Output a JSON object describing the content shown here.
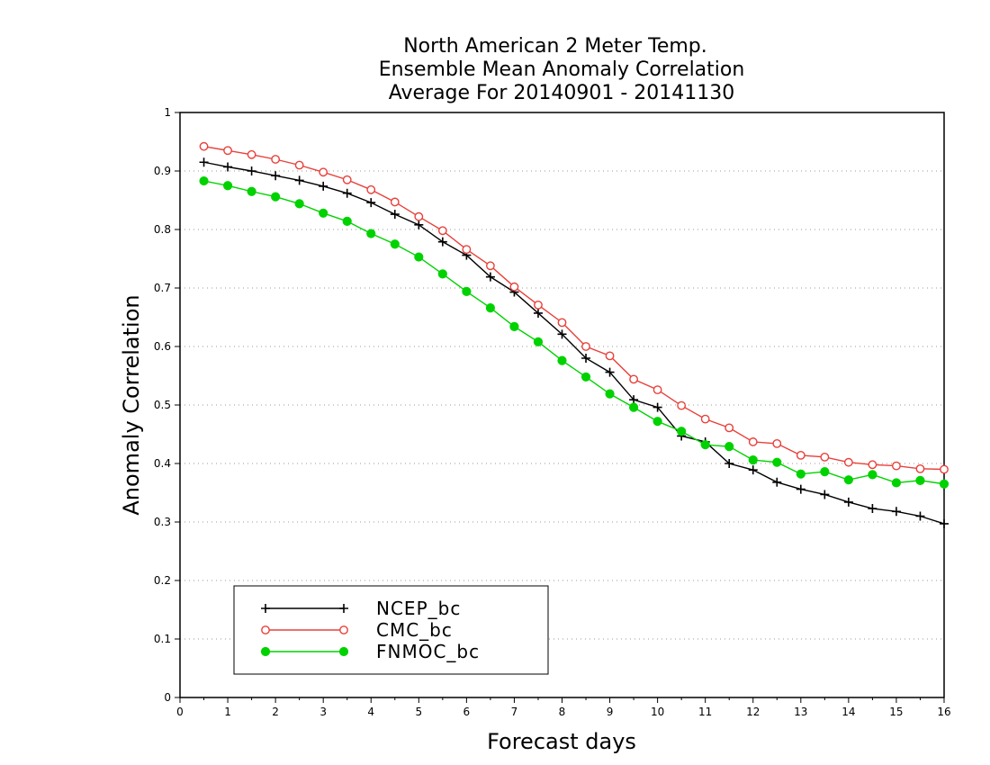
{
  "chart_data": {
    "type": "line",
    "title": [
      "North American 2 Meter Temp.",
      "Ensemble Mean Anomaly Correlation",
      "Average For 20140901 - 20141130"
    ],
    "xlabel": "Forecast days",
    "ylabel": "Anomaly Correlation",
    "xlim": [
      0,
      16
    ],
    "ylim": [
      0,
      1
    ],
    "xticks": [
      "0",
      "1",
      "2",
      "3",
      "4",
      "5",
      "6",
      "7",
      "8",
      "9",
      "10",
      "11",
      "12",
      "13",
      "14",
      "15",
      "16"
    ],
    "yticks": [
      "0",
      "0.1",
      "0.2",
      "0.3",
      "0.4",
      "0.5",
      "0.6",
      "0.7",
      "0.8",
      "0.9",
      "1"
    ],
    "grid": "horizontal dotted",
    "legend_position": "bottom-left",
    "x": [
      0.5,
      1,
      1.5,
      2,
      2.5,
      3,
      3.5,
      4,
      4.5,
      5,
      5.5,
      6,
      6.5,
      7,
      7.5,
      8,
      8.5,
      9,
      9.5,
      10,
      10.5,
      11,
      11.5,
      12,
      12.5,
      13,
      13.5,
      14,
      14.5,
      15,
      15.5,
      16
    ],
    "series": [
      {
        "name": "NCEP_bc",
        "color": "#000000",
        "marker": "plus",
        "values": [
          0.915,
          0.907,
          0.9,
          0.892,
          0.884,
          0.874,
          0.862,
          0.846,
          0.826,
          0.808,
          0.779,
          0.756,
          0.719,
          0.693,
          0.657,
          0.621,
          0.58,
          0.556,
          0.509,
          0.496,
          0.447,
          0.437,
          0.4,
          0.389,
          0.368,
          0.356,
          0.347,
          0.334,
          0.323,
          0.318,
          0.31,
          0.297
        ]
      },
      {
        "name": "CMC_bc",
        "color": "#e8403a",
        "marker": "open-circle",
        "values": [
          0.942,
          0.935,
          0.928,
          0.92,
          0.91,
          0.898,
          0.885,
          0.868,
          0.847,
          0.822,
          0.798,
          0.766,
          0.738,
          0.702,
          0.671,
          0.641,
          0.6,
          0.584,
          0.544,
          0.526,
          0.499,
          0.476,
          0.461,
          0.437,
          0.434,
          0.414,
          0.411,
          0.402,
          0.398,
          0.396,
          0.391,
          0.39
        ]
      },
      {
        "name": "FNMOC_bc",
        "color": "#00d200",
        "marker": "filled-circle",
        "values": [
          0.883,
          0.875,
          0.865,
          0.856,
          0.844,
          0.828,
          0.814,
          0.793,
          0.775,
          0.753,
          0.724,
          0.694,
          0.666,
          0.634,
          0.608,
          0.576,
          0.548,
          0.519,
          0.496,
          0.472,
          0.455,
          0.432,
          0.429,
          0.406,
          0.402,
          0.382,
          0.386,
          0.372,
          0.381,
          0.367,
          0.371,
          0.365
        ]
      }
    ]
  }
}
